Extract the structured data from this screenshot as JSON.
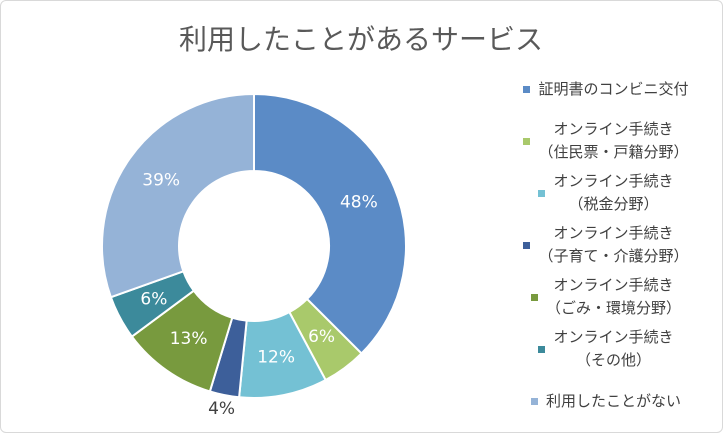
{
  "chart_data": {
    "type": "donut",
    "title": "利用したことがあるサービス",
    "categories": [
      "証明書のコンビニ交付",
      "オンライン手続き\n（住民票・戸籍分野）",
      "オンライン手続き\n（税金分野）",
      "オンライン手続き\n（子育て・介護分野）",
      "オンライン手続き\n（ごみ・環境分野）",
      "オンライン手続き\n（その他）",
      "利用したことがない"
    ],
    "values": [
      48,
      6,
      12,
      4,
      13,
      6,
      39
    ],
    "value_labels": [
      "48%",
      "6%",
      "12%",
      "4%",
      "13%",
      "6%",
      "39%"
    ],
    "colors": [
      "#5b8bc6",
      "#a9c96b",
      "#74c1d4",
      "#3d5f9a",
      "#789a3e",
      "#3c8a9b",
      "#95b3d7"
    ],
    "legend": "right"
  }
}
